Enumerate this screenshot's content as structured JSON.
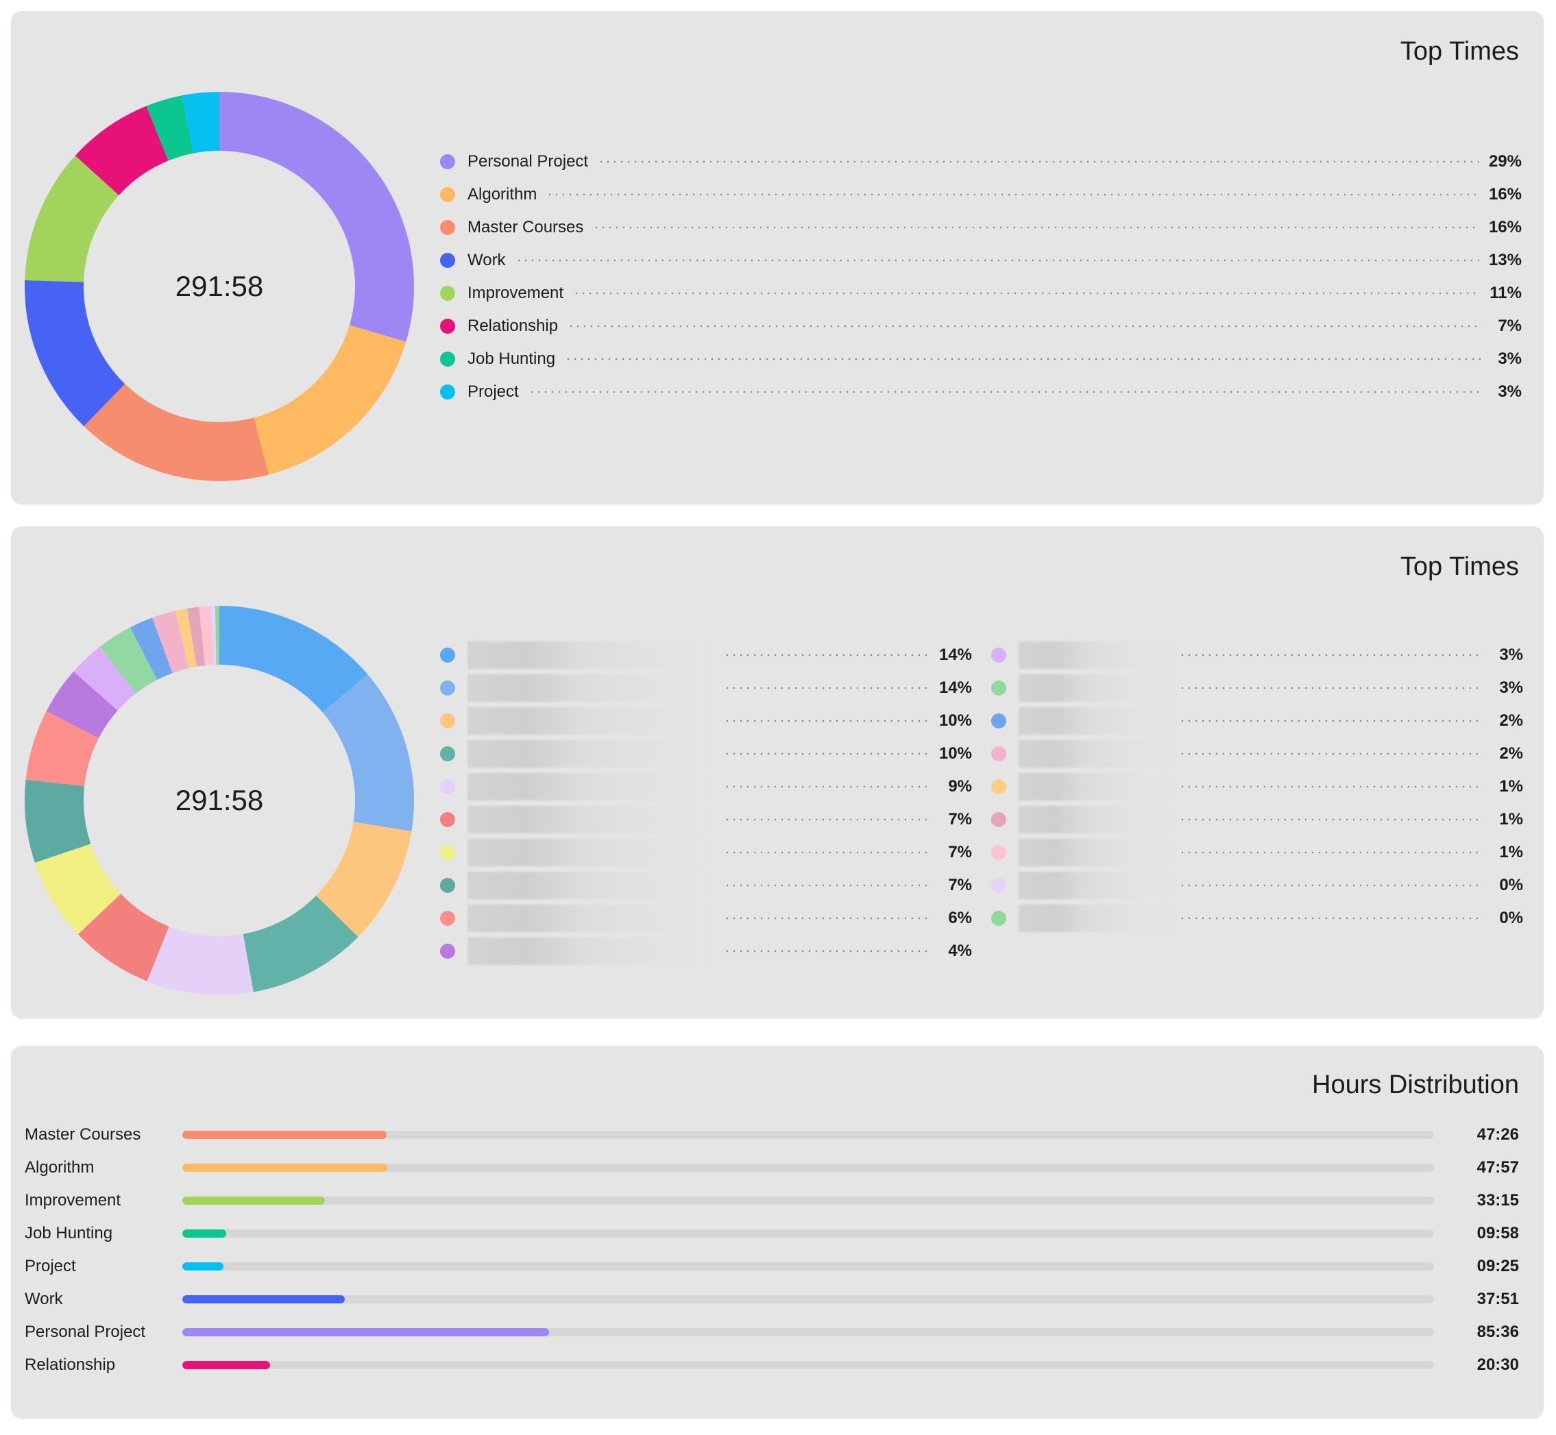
{
  "panel1": {
    "title": "Top Times",
    "center_total": "291:58",
    "items": [
      {
        "label": "Personal Project",
        "pct": "29%",
        "color": "#9d87f5"
      },
      {
        "label": "Algorithm",
        "pct": "16%",
        "color": "#ffb960"
      },
      {
        "label": "Master Courses",
        "pct": "16%",
        "color": "#f58d6e"
      },
      {
        "label": "Work",
        "pct": "13%",
        "color": "#4763f3"
      },
      {
        "label": "Improvement",
        "pct": "11%",
        "color": "#a2d35a"
      },
      {
        "label": "Relationship",
        "pct": "7%",
        "color": "#e6127a"
      },
      {
        "label": "Job Hunting",
        "pct": "3%",
        "color": "#0cc68f"
      },
      {
        "label": "Project",
        "pct": "3%",
        "color": "#06c0f2"
      }
    ]
  },
  "panel2": {
    "title": "Top Times",
    "center_total": "291:58",
    "items": [
      {
        "pct": "14%",
        "color": "#56a9f2"
      },
      {
        "pct": "14%",
        "color": "#7fb2ef"
      },
      {
        "pct": "10%",
        "color": "#fcc67f"
      },
      {
        "pct": "10%",
        "color": "#62b2aa"
      },
      {
        "pct": "9%",
        "color": "#e5d1f7"
      },
      {
        "pct": "7%",
        "color": "#f2817e"
      },
      {
        "pct": "7%",
        "color": "#f2ef82"
      },
      {
        "pct": "7%",
        "color": "#5daaa3"
      },
      {
        "pct": "6%",
        "color": "#fb8f8c"
      },
      {
        "pct": "4%",
        "color": "#b97ae0"
      },
      {
        "pct": "3%",
        "color": "#dbaef9"
      },
      {
        "pct": "3%",
        "color": "#92d8a3"
      },
      {
        "pct": "2%",
        "color": "#6ea5ec"
      },
      {
        "pct": "2%",
        "color": "#f2b2cc"
      },
      {
        "pct": "1%",
        "color": "#fbcd85"
      },
      {
        "pct": "1%",
        "color": "#e3a4bc"
      },
      {
        "pct": "1%",
        "color": "#fdc3d1"
      },
      {
        "pct": "0%",
        "color": "#e5d3f9"
      },
      {
        "pct": "0%",
        "color": "#8fd89a"
      }
    ]
  },
  "panel3": {
    "title": "Hours Distribution",
    "rows": [
      {
        "label": "Master Courses",
        "value": "47:26",
        "color": "#f58d6e",
        "fraction": 0.163
      },
      {
        "label": "Algorithm",
        "value": "47:57",
        "color": "#ffb960",
        "fraction": 0.164
      },
      {
        "label": "Improvement",
        "value": "33:15",
        "color": "#a2d35a",
        "fraction": 0.114
      },
      {
        "label": "Job Hunting",
        "value": "09:58",
        "color": "#0cc68f",
        "fraction": 0.035
      },
      {
        "label": "Project",
        "value": "09:25",
        "color": "#06c0f2",
        "fraction": 0.033
      },
      {
        "label": "Work",
        "value": "37:51",
        "color": "#4763f3",
        "fraction": 0.13
      },
      {
        "label": "Personal Project",
        "value": "85:36",
        "color": "#9d87f5",
        "fraction": 0.293
      },
      {
        "label": "Relationship",
        "value": "20:30",
        "color": "#e6127a",
        "fraction": 0.07
      }
    ]
  }
}
